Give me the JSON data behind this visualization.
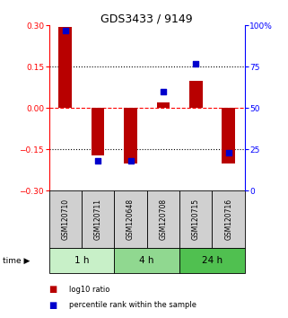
{
  "title": "GDS3433 / 9149",
  "samples": [
    "GSM120710",
    "GSM120711",
    "GSM120648",
    "GSM120708",
    "GSM120715",
    "GSM120716"
  ],
  "log10_ratio": [
    0.295,
    -0.17,
    -0.2,
    0.02,
    0.1,
    -0.2
  ],
  "percentile_rank": [
    97,
    18,
    18,
    60,
    77,
    23
  ],
  "time_groups": [
    {
      "label": "1 h",
      "cols": [
        0,
        1
      ],
      "color": "#c8f0c8"
    },
    {
      "label": "4 h",
      "cols": [
        2,
        3
      ],
      "color": "#90d890"
    },
    {
      "label": "24 h",
      "cols": [
        4,
        5
      ],
      "color": "#50c050"
    }
  ],
  "bar_color": "#b80000",
  "dot_color": "#0000cc",
  "ylim_left": [
    -0.3,
    0.3
  ],
  "ylim_right": [
    0,
    100
  ],
  "yticks_left": [
    -0.3,
    -0.15,
    0,
    0.15,
    0.3
  ],
  "yticks_right": [
    0,
    25,
    50,
    75,
    100
  ],
  "ytick_labels_right": [
    "0",
    "25",
    "50",
    "75",
    "100%"
  ],
  "hlines_dotted": [
    0.15,
    -0.15
  ],
  "hline_dashed": 0.0,
  "bar_width": 0.4,
  "dot_size": 20,
  "sample_box_color": "#d0d0d0",
  "legend_labels": [
    "log10 ratio",
    "percentile rank within the sample"
  ]
}
